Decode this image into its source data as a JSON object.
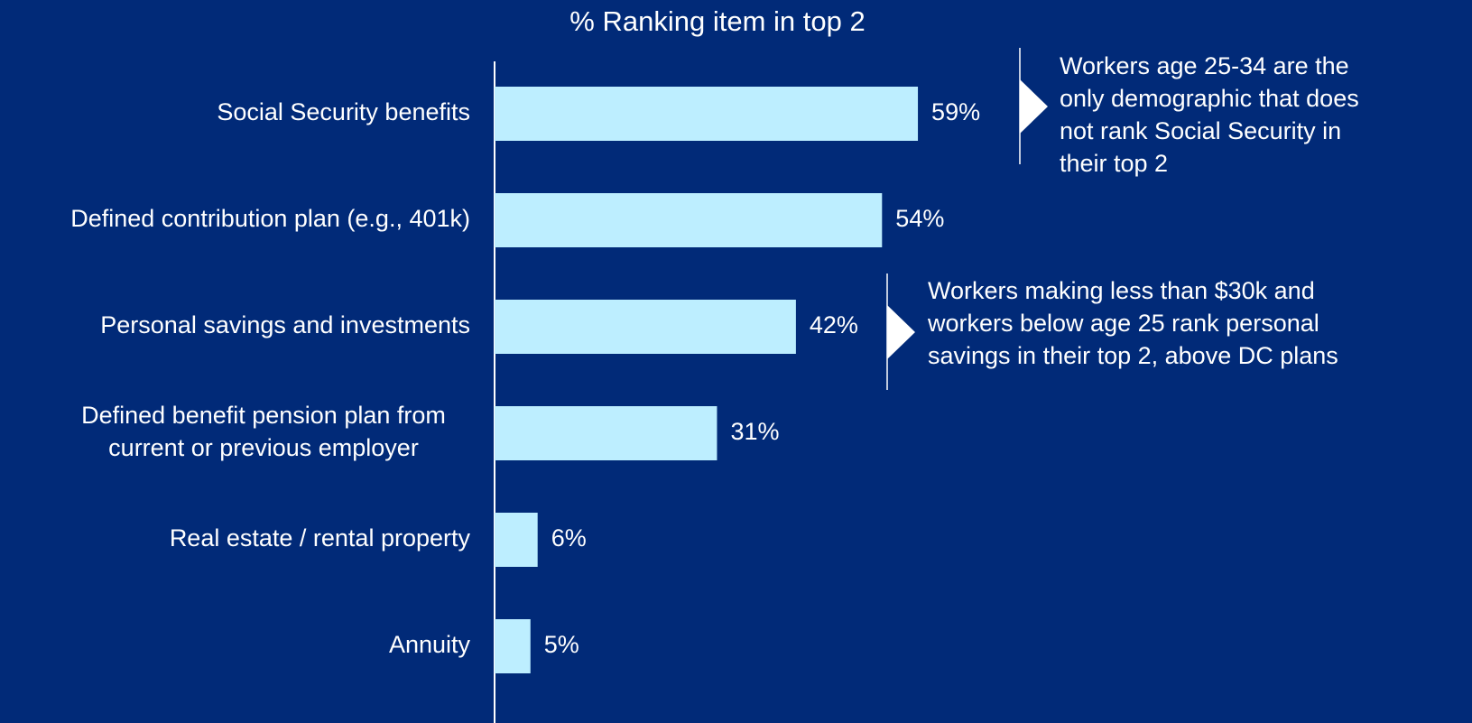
{
  "chart_data": {
    "type": "bar",
    "orientation": "horizontal",
    "title": "% Ranking item in top 2",
    "categories": [
      "Social Security benefits",
      "Defined contribution plan (e.g., 401k)",
      "Personal savings and investments",
      "Defined benefit pension plan from\ncurrent or previous employer",
      "Real estate / rental property",
      "Annuity"
    ],
    "values": [
      59,
      54,
      42,
      31,
      6,
      5
    ],
    "value_labels": [
      "59%",
      "54%",
      "42%",
      "31%",
      "6%",
      "5%"
    ],
    "color": "#bdeeff",
    "annotations": [
      "Workers age 25-34 are the\nonly demographic that does\nnot rank Social Security in\ntheir top 2",
      "Workers making less than $30k and\nworkers below age 25 rank personal\nsavings in their top 2, above DC plans"
    ]
  }
}
